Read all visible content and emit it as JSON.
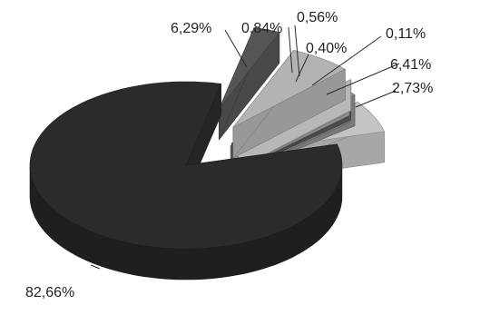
{
  "chart_data": {
    "type": "pie",
    "style": "3d-exploded",
    "title": "",
    "legend": "none",
    "slices": [
      {
        "label": "82,66%",
        "value": 82.66,
        "color": "#2b2b2b"
      },
      {
        "label": "6,29%",
        "value": 6.29,
        "color": "#c4c4c4"
      },
      {
        "label": "0,84%",
        "value": 0.84,
        "color": "#8e8e8e"
      },
      {
        "label": "0,56%",
        "value": 0.56,
        "color": "#5a5a5a"
      },
      {
        "label": "0,40%",
        "value": 0.4,
        "color": "#a8a8a8"
      },
      {
        "label": "0,11%",
        "value": 0.11,
        "color": "#d8d8d8"
      },
      {
        "label": "6,41%",
        "value": 6.41,
        "color": "#b3b3b3"
      },
      {
        "label": "2,73%",
        "value": 2.73,
        "color": "#555555"
      }
    ]
  }
}
